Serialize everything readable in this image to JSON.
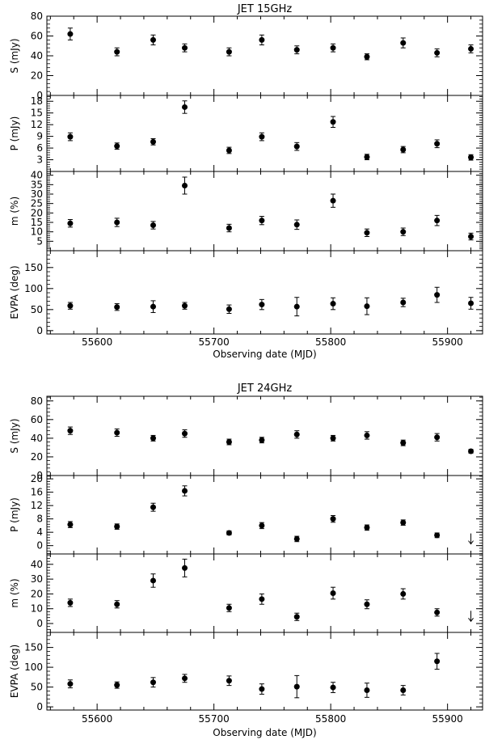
{
  "chart_data": [
    {
      "type": "scatter",
      "title": "JET 15GHz",
      "xlabel": "Observing date (MJD)",
      "xlim": [
        55557,
        55930
      ],
      "x_ticks": [
        "55600",
        "55700",
        "55800",
        "55900"
      ],
      "panels": [
        {
          "ylabel": "S (mJy)",
          "ylim": [
            0,
            80
          ],
          "y_ticks": [
            "0",
            "20",
            "40",
            "60",
            "80"
          ],
          "points": [
            {
              "x": 55577,
              "y": 62,
              "err": 6
            },
            {
              "x": 55617,
              "y": 44,
              "err": 4
            },
            {
              "x": 55648,
              "y": 56,
              "err": 5
            },
            {
              "x": 55675,
              "y": 48,
              "err": 4
            },
            {
              "x": 55713,
              "y": 44,
              "err": 4
            },
            {
              "x": 55741,
              "y": 56,
              "err": 5
            },
            {
              "x": 55771,
              "y": 46,
              "err": 4
            },
            {
              "x": 55802,
              "y": 48,
              "err": 4
            },
            {
              "x": 55831,
              "y": 39,
              "err": 3
            },
            {
              "x": 55862,
              "y": 53,
              "err": 5
            },
            {
              "x": 55891,
              "y": 43,
              "err": 4
            },
            {
              "x": 55920,
              "y": 47,
              "err": 4
            }
          ]
        },
        {
          "ylabel": "P (mJy)",
          "ylim": [
            0,
            19.5
          ],
          "y_ticks": [
            "3",
            "6",
            "9",
            "12",
            "15",
            "18"
          ],
          "y_tick_values": [
            3,
            6,
            9,
            12,
            15,
            18
          ],
          "points": [
            {
              "x": 55577,
              "y": 8.9,
              "err": 1.0
            },
            {
              "x": 55617,
              "y": 6.5,
              "err": 0.8
            },
            {
              "x": 55648,
              "y": 7.6,
              "err": 0.8
            },
            {
              "x": 55675,
              "y": 16.5,
              "err": 1.6
            },
            {
              "x": 55713,
              "y": 5.4,
              "err": 0.8
            },
            {
              "x": 55741,
              "y": 8.9,
              "err": 1.0
            },
            {
              "x": 55771,
              "y": 6.4,
              "err": 1.0
            },
            {
              "x": 55802,
              "y": 12.7,
              "err": 1.4
            },
            {
              "x": 55831,
              "y": 3.7,
              "err": 0.7
            },
            {
              "x": 55862,
              "y": 5.6,
              "err": 0.8
            },
            {
              "x": 55891,
              "y": 7.1,
              "err": 1.0
            },
            {
              "x": 55920,
              "y": 3.6,
              "err": 0.7
            }
          ]
        },
        {
          "ylabel": "m (%)",
          "ylim": [
            0,
            42
          ],
          "y_ticks": [
            "5",
            "10",
            "15",
            "20",
            "25",
            "30",
            "35",
            "40"
          ],
          "y_tick_values": [
            5,
            10,
            15,
            20,
            25,
            30,
            35,
            40
          ],
          "points": [
            {
              "x": 55577,
              "y": 14.5,
              "err": 2.0
            },
            {
              "x": 55617,
              "y": 15.0,
              "err": 2.2
            },
            {
              "x": 55648,
              "y": 13.5,
              "err": 2.0
            },
            {
              "x": 55675,
              "y": 34.5,
              "err": 4.5
            },
            {
              "x": 55713,
              "y": 12.0,
              "err": 2.0
            },
            {
              "x": 55741,
              "y": 16.0,
              "err": 2.2
            },
            {
              "x": 55771,
              "y": 13.8,
              "err": 2.5
            },
            {
              "x": 55802,
              "y": 26.5,
              "err": 3.5
            },
            {
              "x": 55831,
              "y": 9.5,
              "err": 2.0
            },
            {
              "x": 55862,
              "y": 10.0,
              "err": 2.0
            },
            {
              "x": 55891,
              "y": 16.0,
              "err": 2.7
            },
            {
              "x": 55920,
              "y": 7.5,
              "err": 1.8
            }
          ]
        },
        {
          "ylabel": "EVPA (deg)",
          "ylim": [
            -8,
            190
          ],
          "y_ticks": [
            "0",
            "50",
            "100",
            "150"
          ],
          "y_tick_values": [
            0,
            50,
            100,
            150
          ],
          "points": [
            {
              "x": 55577,
              "y": 59,
              "err": 8
            },
            {
              "x": 55617,
              "y": 56,
              "err": 8
            },
            {
              "x": 55648,
              "y": 57,
              "err": 14
            },
            {
              "x": 55675,
              "y": 59,
              "err": 8
            },
            {
              "x": 55713,
              "y": 51,
              "err": 10
            },
            {
              "x": 55741,
              "y": 62,
              "err": 12
            },
            {
              "x": 55771,
              "y": 57,
              "err": 22
            },
            {
              "x": 55802,
              "y": 64,
              "err": 14
            },
            {
              "x": 55831,
              "y": 58,
              "err": 20
            },
            {
              "x": 55862,
              "y": 67,
              "err": 10
            },
            {
              "x": 55891,
              "y": 85,
              "err": 18
            },
            {
              "x": 55920,
              "y": 65,
              "err": 14
            }
          ]
        }
      ]
    },
    {
      "type": "scatter",
      "title": "JET 24GHz",
      "xlabel": "Observing date (MJD)",
      "xlim": [
        55557,
        55930
      ],
      "x_ticks": [
        "55600",
        "55700",
        "55800",
        "55900"
      ],
      "panels": [
        {
          "ylabel": "S (mJy)",
          "ylim": [
            0,
            85
          ],
          "y_ticks": [
            "0",
            "20",
            "40",
            "60",
            "80"
          ],
          "points": [
            {
              "x": 55577,
              "y": 48,
              "err": 4
            },
            {
              "x": 55617,
              "y": 46,
              "err": 4
            },
            {
              "x": 55648,
              "y": 40,
              "err": 3
            },
            {
              "x": 55675,
              "y": 45,
              "err": 4
            },
            {
              "x": 55713,
              "y": 36,
              "err": 3
            },
            {
              "x": 55741,
              "y": 38,
              "err": 3
            },
            {
              "x": 55771,
              "y": 44,
              "err": 4
            },
            {
              "x": 55802,
              "y": 40,
              "err": 3
            },
            {
              "x": 55831,
              "y": 43,
              "err": 4
            },
            {
              "x": 55862,
              "y": 35,
              "err": 3
            },
            {
              "x": 55891,
              "y": 41,
              "err": 4
            },
            {
              "x": 55920,
              "y": 26,
              "err": 2
            }
          ]
        },
        {
          "ylabel": "P (mJy)",
          "ylim": [
            -2.5,
            21
          ],
          "y_ticks": [
            "0",
            "4",
            "8",
            "12",
            "16",
            "20"
          ],
          "points": [
            {
              "x": 55577,
              "y": 6.3,
              "err": 0.9
            },
            {
              "x": 55617,
              "y": 5.7,
              "err": 0.8
            },
            {
              "x": 55648,
              "y": 11.5,
              "err": 1.2
            },
            {
              "x": 55675,
              "y": 16.4,
              "err": 1.5
            },
            {
              "x": 55713,
              "y": 3.8,
              "err": 0.6
            },
            {
              "x": 55741,
              "y": 6.0,
              "err": 0.9
            },
            {
              "x": 55771,
              "y": 2.0,
              "err": 0.8
            },
            {
              "x": 55802,
              "y": 8.0,
              "err": 1.0
            },
            {
              "x": 55831,
              "y": 5.4,
              "err": 0.8
            },
            {
              "x": 55862,
              "y": 6.9,
              "err": 0.8
            },
            {
              "x": 55891,
              "y": 3.1,
              "err": 0.7
            }
          ],
          "upper_limits": [
            {
              "x": 55920,
              "y": 0.5
            }
          ]
        },
        {
          "ylabel": "m (%)",
          "ylim": [
            -6,
            47
          ],
          "y_ticks": [
            "0",
            "10",
            "20",
            "30",
            "40"
          ],
          "points": [
            {
              "x": 55577,
              "y": 14,
              "err": 2.5
            },
            {
              "x": 55617,
              "y": 13,
              "err": 2.5
            },
            {
              "x": 55648,
              "y": 29,
              "err": 4.5
            },
            {
              "x": 55675,
              "y": 37.5,
              "err": 6
            },
            {
              "x": 55713,
              "y": 10.5,
              "err": 2.5
            },
            {
              "x": 55741,
              "y": 16.5,
              "err": 3.5
            },
            {
              "x": 55771,
              "y": 4.5,
              "err": 2.5
            },
            {
              "x": 55802,
              "y": 20.5,
              "err": 4
            },
            {
              "x": 55831,
              "y": 13,
              "err": 3
            },
            {
              "x": 55862,
              "y": 20,
              "err": 3.5
            },
            {
              "x": 55891,
              "y": 7.5,
              "err": 2.5
            }
          ],
          "upper_limits": [
            {
              "x": 55920,
              "y": 1.5
            }
          ]
        },
        {
          "ylabel": "EVPA (deg)",
          "ylim": [
            -8,
            188
          ],
          "y_ticks": [
            "0",
            "50",
            "100",
            "150"
          ],
          "points": [
            {
              "x": 55577,
              "y": 58,
              "err": 10
            },
            {
              "x": 55617,
              "y": 55,
              "err": 8
            },
            {
              "x": 55648,
              "y": 62,
              "err": 12
            },
            {
              "x": 55675,
              "y": 72,
              "err": 10
            },
            {
              "x": 55713,
              "y": 66,
              "err": 12
            },
            {
              "x": 55741,
              "y": 45,
              "err": 13
            },
            {
              "x": 55771,
              "y": 51,
              "err": 28
            },
            {
              "x": 55802,
              "y": 49,
              "err": 13
            },
            {
              "x": 55831,
              "y": 42,
              "err": 18
            },
            {
              "x": 55862,
              "y": 42,
              "err": 12
            },
            {
              "x": 55891,
              "y": 115,
              "err": 20
            }
          ]
        }
      ]
    }
  ]
}
